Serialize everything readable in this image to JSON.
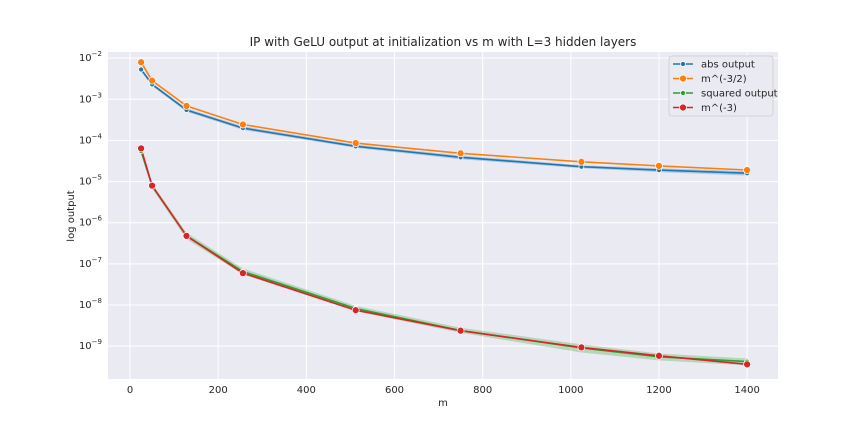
{
  "chart_data": {
    "type": "line",
    "title": "IP with GeLU output at initialization vs m with L=3 hidden layers",
    "xlabel": "m",
    "ylabel": "log output",
    "xlim": [
      -50,
      1470
    ],
    "ylim_log10": [
      -9.8,
      -1.85
    ],
    "yscale": "log",
    "grid": true,
    "legend_position": "top-right",
    "x": [
      25,
      50,
      128,
      256,
      512,
      750,
      1024,
      1200,
      1400
    ],
    "x_ticks": [
      0,
      200,
      400,
      600,
      800,
      1000,
      1200,
      1400
    ],
    "y_ticks": [
      "10^-2",
      "10^-3",
      "10^-4",
      "10^-5",
      "10^-6",
      "10^-7",
      "10^-8",
      "10^-9"
    ],
    "series": [
      {
        "name": "abs output",
        "color": "#1f77b4",
        "marker_size": 2.5,
        "values": [
          0.0053,
          0.0023,
          0.00055,
          0.0002,
          7.2e-05,
          3.9e-05,
          2.3e-05,
          1.9e-05,
          1.6e-05
        ],
        "band_low": [
          0.0048,
          0.0021,
          0.0005,
          0.00018,
          6.6e-05,
          3.5e-05,
          2.1e-05,
          1.7e-05,
          1.4e-05
        ],
        "band_high": [
          0.0059,
          0.0025,
          0.0006,
          0.00022,
          7.9e-05,
          4.3e-05,
          2.5e-05,
          2.1e-05,
          1.8e-05
        ]
      },
      {
        "name": "m^(-3/2)",
        "color": "#ff7f0e",
        "marker_size": 3.5,
        "values": [
          0.008,
          0.00283,
          0.00069,
          0.000244,
          8.63e-05,
          4.87e-05,
          3.02e-05,
          2.41e-05,
          1.91e-05
        ]
      },
      {
        "name": "squared output",
        "color": "#2ca02c",
        "marker_size": 2.5,
        "values": [
          5.5e-05,
          7.8e-06,
          4.8e-07,
          6.5e-08,
          8.2e-09,
          2.4e-09,
          9e-10,
          5.5e-10,
          4.2e-10
        ],
        "band_low": [
          4.8e-05,
          6.8e-06,
          4e-07,
          5.5e-08,
          7e-09,
          2.1e-09,
          7e-10,
          4.5e-10,
          3.4e-10
        ],
        "band_high": [
          6.3e-05,
          8.9e-06,
          5.7e-07,
          7.7e-08,
          9.5e-09,
          2.8e-09,
          1.1e-09,
          6.6e-10,
          5e-10
        ]
      },
      {
        "name": "m^(-3)",
        "color": "#d62728",
        "marker_size": 3.5,
        "values": [
          6.4e-05,
          8e-06,
          4.77e-07,
          5.96e-08,
          7.45e-09,
          2.37e-09,
          9.3e-10,
          5.8e-10,
          3.6e-10
        ]
      }
    ]
  }
}
